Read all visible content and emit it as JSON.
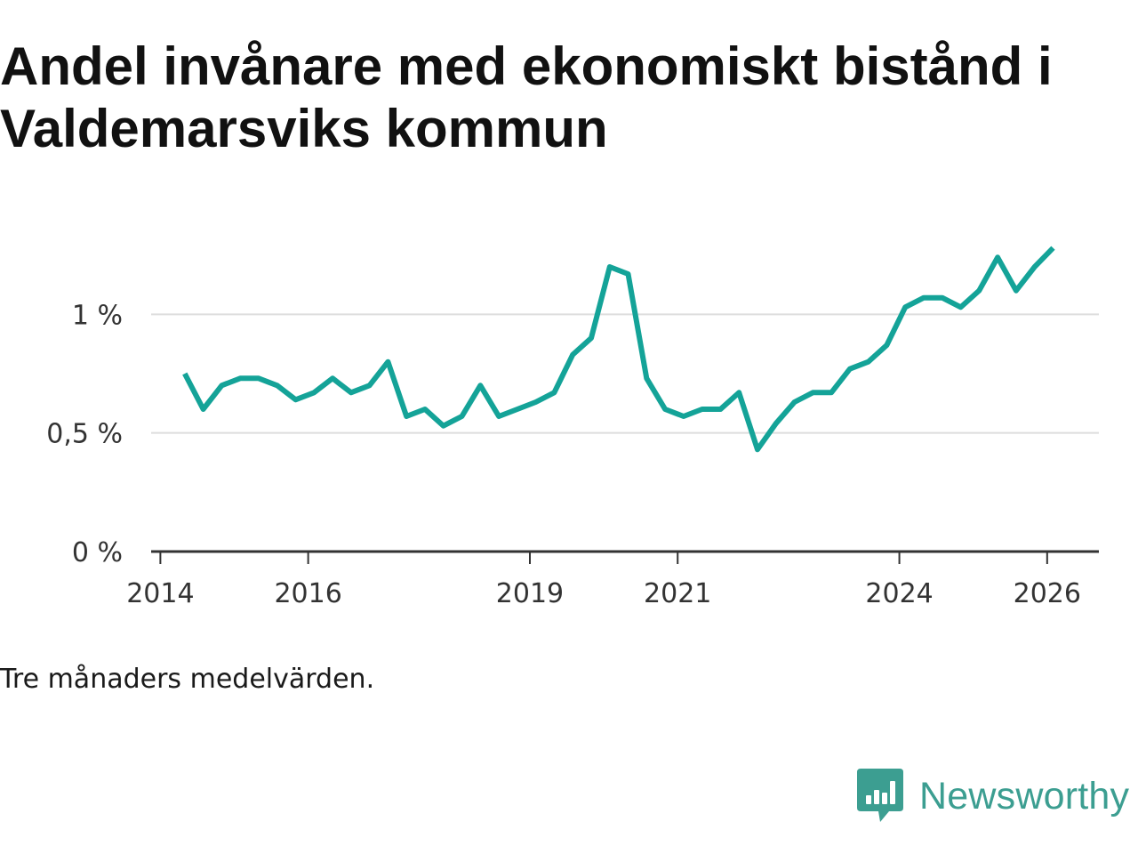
{
  "title": "Andel invånare med ekonomiskt bistånd i Valdemarsviks kommun",
  "note": "Tre månaders medelvärden.",
  "brand": {
    "name": "Newsworthy",
    "icon": "newsworthy-logo-icon"
  },
  "colors": {
    "line": "#14a398",
    "grid": "#dddddd",
    "axis": "#333333",
    "text": "#333333",
    "brand": "#3c9e91"
  },
  "chart_data": {
    "type": "line",
    "title": "Andel invånare med ekonomiskt bistånd i Valdemarsviks kommun",
    "xlabel": "",
    "ylabel": "",
    "xlim": [
      2013.875,
      2026.7
    ],
    "ylim": [
      0,
      1.2
    ],
    "grid": true,
    "y_ticks": [
      {
        "value": 0,
        "label": "0 %"
      },
      {
        "value": 0.5,
        "label": "0,5 %"
      },
      {
        "value": 1,
        "label": "1 %"
      }
    ],
    "x_ticks": [
      {
        "value": 2014,
        "label": "2014"
      },
      {
        "value": 2016,
        "label": "2016"
      },
      {
        "value": 2019,
        "label": "2019"
      },
      {
        "value": 2021,
        "label": "2021"
      },
      {
        "value": 2024,
        "label": "2024"
      },
      {
        "value": 2026,
        "label": "2026"
      }
    ],
    "series": [
      {
        "name": "Andel invånare med ekonomiskt bistånd",
        "x": [
          2014.33,
          2014.58,
          2014.83,
          2015.08,
          2015.33,
          2015.58,
          2015.83,
          2016.08,
          2016.33,
          2016.58,
          2016.83,
          2017.08,
          2017.33,
          2017.58,
          2017.83,
          2018.08,
          2018.33,
          2018.58,
          2018.83,
          2019.08,
          2019.33,
          2019.58,
          2019.83,
          2020.08,
          2020.33,
          2020.58,
          2020.83,
          2021.08,
          2021.33,
          2021.58,
          2021.83,
          2022.08,
          2022.33,
          2022.58,
          2022.83,
          2023.08,
          2023.33,
          2023.58,
          2023.83,
          2024.08,
          2024.33,
          2024.58,
          2024.83,
          2025.08,
          2025.33,
          2025.58,
          2025.83,
          2026.08
        ],
        "values": [
          0.75,
          0.6,
          0.7,
          0.73,
          0.73,
          0.7,
          0.64,
          0.67,
          0.73,
          0.67,
          0.7,
          0.8,
          0.57,
          0.6,
          0.53,
          0.57,
          0.7,
          0.57,
          0.6,
          0.63,
          0.67,
          0.83,
          0.9,
          1.2,
          1.17,
          0.73,
          0.6,
          0.57,
          0.6,
          0.6,
          0.67,
          0.43,
          0.54,
          0.63,
          0.67,
          0.67,
          0.77,
          0.8,
          0.87,
          1.03,
          1.07,
          1.07,
          1.03,
          1.1,
          1.24,
          1.1,
          1.2,
          1.28
        ]
      }
    ]
  }
}
